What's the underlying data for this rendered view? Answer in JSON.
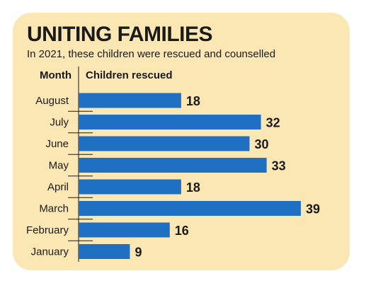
{
  "title": "UNITING FAMILIES",
  "subtitle": "In 2021, these children were rescued and counselled",
  "headers": {
    "month": "Month",
    "value": "Children rescued"
  },
  "colors": {
    "bar": "#1f6fc3",
    "background": "#fbe7b4",
    "text": "#1a1a1a"
  },
  "chart_data": {
    "type": "bar",
    "orientation": "horizontal",
    "title": "UNITING FAMILIES",
    "subtitle": "In 2021, these children were rescued and counselled",
    "xlabel": "Children rescued",
    "ylabel": "Month",
    "categories": [
      "August",
      "July",
      "June",
      "May",
      "April",
      "March",
      "February",
      "January"
    ],
    "values": [
      18,
      32,
      30,
      33,
      18,
      39,
      16,
      9
    ],
    "data_labels": true,
    "grid": false,
    "legend": "none"
  }
}
